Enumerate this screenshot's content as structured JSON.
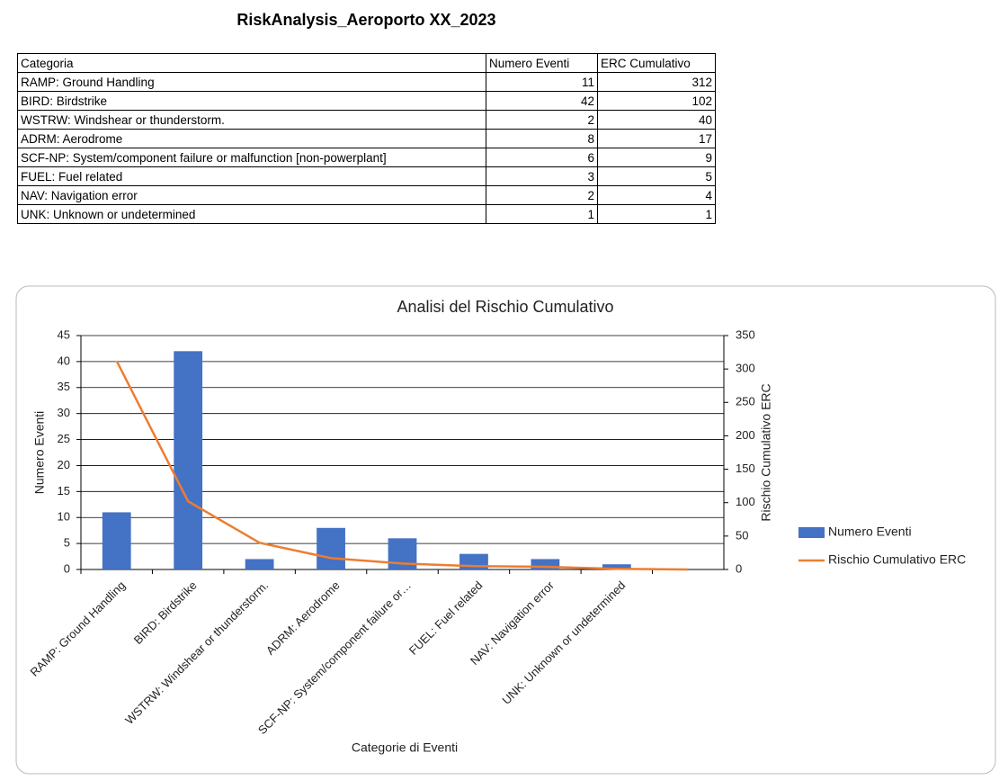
{
  "header": {
    "title": "RiskAnalysis_Aeroporto XX_2023"
  },
  "table": {
    "columns": [
      "Categoria",
      "Numero Eventi",
      "ERC Cumulativo"
    ],
    "rows": [
      [
        "RAMP: Ground Handling",
        11,
        312
      ],
      [
        "BIRD: Birdstrike",
        42,
        102
      ],
      [
        "WSTRW: Windshear or thunderstorm.",
        2,
        40
      ],
      [
        "ADRM: Aerodrome",
        8,
        17
      ],
      [
        "SCF-NP: System/component failure or malfunction [non-powerplant]",
        6,
        9
      ],
      [
        "FUEL: Fuel related",
        3,
        5
      ],
      [
        "NAV: Navigation error",
        2,
        4
      ],
      [
        "UNK: Unknown or undetermined",
        1,
        1
      ]
    ]
  },
  "chart_data": {
    "type": "bar",
    "title": "Analisi del Rischio Cumulativo",
    "x_label": "Categorie di Eventi",
    "y_label": "Numero Eventi",
    "y2_label": "Rischio Cumulativo ERC",
    "categories": [
      "RAMP: Ground Handling",
      "BIRD: Birdstrike",
      "WSTRW: Windshear or thunderstorm.",
      "ADRM: Aerodrome",
      "SCF-NP: System/component failure or…",
      "FUEL: Fuel related",
      "NAV: Navigation error",
      "UNK: Unknown or undetermined",
      null
    ],
    "series": [
      {
        "name": "Numero Eventi",
        "type": "bar",
        "color": "#4472c4",
        "values": [
          11,
          42,
          2,
          8,
          6,
          3,
          2,
          1,
          null
        ]
      },
      {
        "name": "Rischio Cumulativo ERC",
        "type": "line",
        "axis": "y2",
        "color": "#ed7d31",
        "values": [
          312,
          102,
          40,
          17,
          9,
          5,
          4,
          1,
          0
        ]
      }
    ],
    "ylim": [
      0,
      45
    ],
    "yticks": [
      0,
      5,
      10,
      15,
      20,
      25,
      30,
      35,
      40,
      45
    ],
    "y2lim": [
      0,
      350
    ],
    "y2ticks": [
      0,
      50,
      100,
      150,
      200,
      250,
      300,
      350
    ],
    "grid": true,
    "legend": "right"
  }
}
